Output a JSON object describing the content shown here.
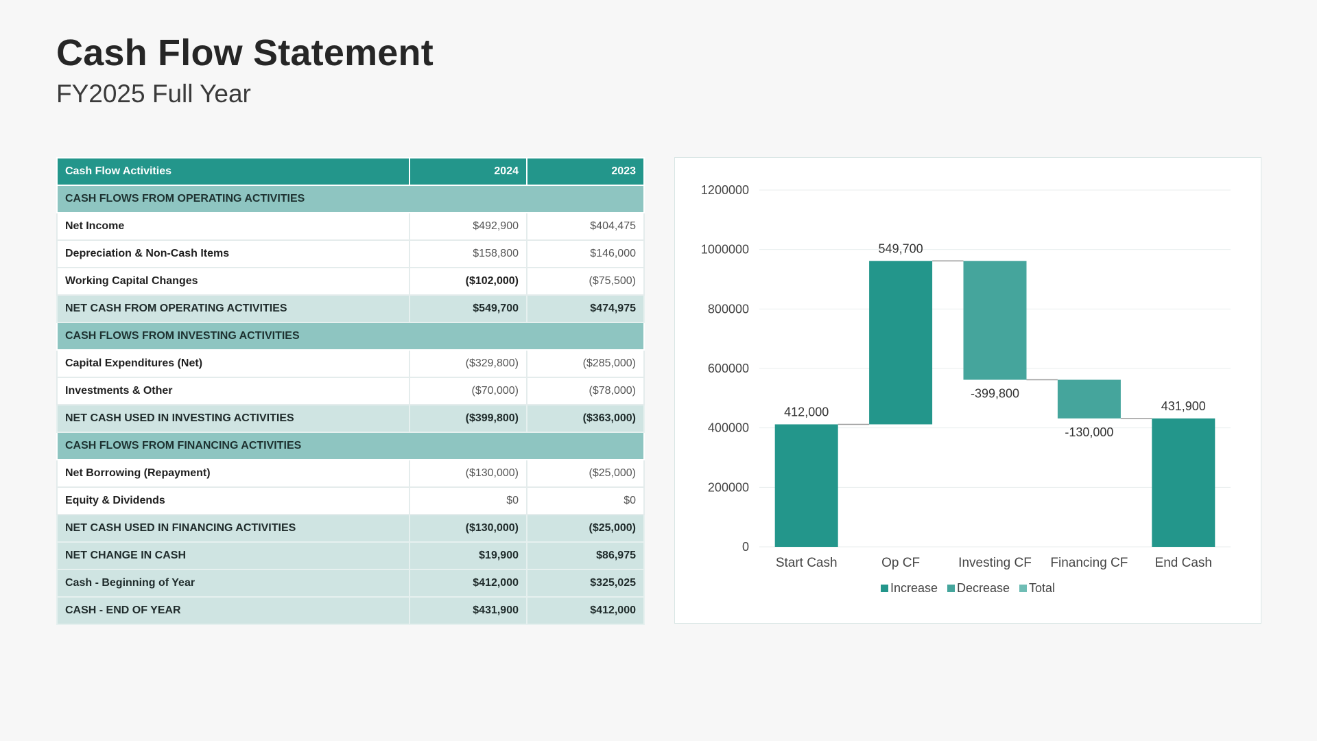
{
  "page": {
    "title": "Cash Flow Statement",
    "subtitle": "FY2025 Full Year"
  },
  "table": {
    "headers": [
      "Cash Flow Activities",
      "2024",
      "2023"
    ],
    "rows": [
      {
        "type": "section",
        "label": "CASH FLOWS FROM OPERATING ACTIVITIES"
      },
      {
        "type": "item",
        "label": "Net Income",
        "v2024": "$492,900",
        "v2023": "$404,475",
        "bold2024": false
      },
      {
        "type": "item",
        "label": "Depreciation & Non-Cash Items",
        "v2024": "$158,800",
        "v2023": "$146,000",
        "bold2024": false
      },
      {
        "type": "item",
        "label": "Working Capital Changes",
        "v2024": "($102,000)",
        "v2023": "($75,500)",
        "bold2024": true
      },
      {
        "type": "subtotal",
        "label": "NET CASH FROM OPERATING ACTIVITIES",
        "v2024": "$549,700",
        "v2023": "$474,975"
      },
      {
        "type": "section",
        "label": "CASH FLOWS FROM INVESTING ACTIVITIES"
      },
      {
        "type": "item",
        "label": "Capital Expenditures (Net)",
        "v2024": "($329,800)",
        "v2023": "($285,000)",
        "bold2024": false
      },
      {
        "type": "item",
        "label": "Investments & Other",
        "v2024": "($70,000)",
        "v2023": "($78,000)",
        "bold2024": false
      },
      {
        "type": "subtotal",
        "label": "NET CASH USED IN INVESTING ACTIVITIES",
        "v2024": "($399,800)",
        "v2023": "($363,000)"
      },
      {
        "type": "section",
        "label": "CASH FLOWS FROM FINANCING ACTIVITIES"
      },
      {
        "type": "item",
        "label": "Net Borrowing (Repayment)",
        "v2024": "($130,000)",
        "v2023": "($25,000)",
        "bold2024": false
      },
      {
        "type": "item",
        "label": "Equity & Dividends",
        "v2024": "$0",
        "v2023": "$0",
        "bold2024": false
      },
      {
        "type": "subtotal",
        "label": "NET CASH USED IN FINANCING ACTIVITIES",
        "v2024": "($130,000)",
        "v2023": "($25,000)"
      },
      {
        "type": "subtotal",
        "label": "NET CHANGE IN CASH",
        "v2024": "$19,900",
        "v2023": "$86,975"
      },
      {
        "type": "subtotal",
        "label": "Cash - Beginning of Year",
        "v2024": "$412,000",
        "v2023": "$325,025"
      },
      {
        "type": "subtotal",
        "label": "CASH - END OF YEAR",
        "v2024": "$431,900",
        "v2023": "$412,000"
      }
    ]
  },
  "chart_data": {
    "type": "bar",
    "subtype": "waterfall",
    "categories": [
      "Start Cash",
      "Op CF",
      "Investing CF",
      "Financing CF",
      "End Cash"
    ],
    "values": [
      412000,
      549700,
      -399800,
      -130000,
      431900
    ],
    "data_labels": [
      "412,000",
      "549,700",
      "-399,800",
      "-130,000",
      "431,900"
    ],
    "bar_kinds": [
      "increase",
      "increase",
      "decrease",
      "decrease",
      "increase"
    ],
    "ylim": [
      0,
      1200000
    ],
    "yticks": [
      "0",
      "200000",
      "400000",
      "600000",
      "800000",
      "1000000",
      "1200000"
    ],
    "ytick_values": [
      0,
      200000,
      400000,
      600000,
      800000,
      1000000,
      1200000
    ],
    "grid": true,
    "legend": {
      "position": "bottom",
      "entries": [
        {
          "name": "Increase",
          "color": "#23968b"
        },
        {
          "name": "Decrease",
          "color": "#45a59c"
        },
        {
          "name": "Total",
          "color": "#6fbdb5"
        }
      ]
    },
    "colors": {
      "increase": "#23968b",
      "decrease": "#45a59c",
      "total": "#6fbdb5"
    }
  }
}
